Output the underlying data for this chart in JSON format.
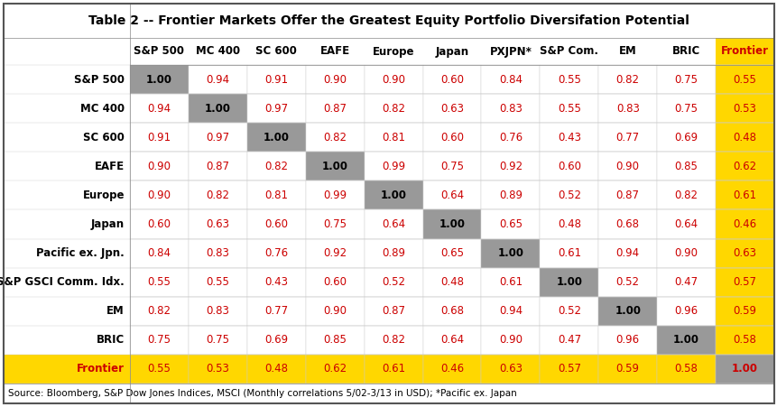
{
  "title": "Table 2 -- Frontier Markets Offer the Greatest Equity Portfolio Diversifation Potential",
  "col_headers": [
    "S&P 500",
    "MC 400",
    "SC 600",
    "EAFE",
    "Europe",
    "Japan",
    "PXJPN*",
    "S&P Com.",
    "EM",
    "BRIC",
    "Frontier"
  ],
  "row_headers": [
    "S&P 500",
    "MC 400",
    "SC 600",
    "EAFE",
    "Europe",
    "Japan",
    "Pacific ex. Jpn.",
    "S&P GSCI Comm. Idx.",
    "EM",
    "BRIC",
    "Frontier"
  ],
  "data": [
    [
      1.0,
      0.94,
      0.91,
      0.9,
      0.9,
      0.6,
      0.84,
      0.55,
      0.82,
      0.75,
      0.55
    ],
    [
      0.94,
      1.0,
      0.97,
      0.87,
      0.82,
      0.63,
      0.83,
      0.55,
      0.83,
      0.75,
      0.53
    ],
    [
      0.91,
      0.97,
      1.0,
      0.82,
      0.81,
      0.6,
      0.76,
      0.43,
      0.77,
      0.69,
      0.48
    ],
    [
      0.9,
      0.87,
      0.82,
      1.0,
      0.99,
      0.75,
      0.92,
      0.6,
      0.9,
      0.85,
      0.62
    ],
    [
      0.9,
      0.82,
      0.81,
      0.99,
      1.0,
      0.64,
      0.89,
      0.52,
      0.87,
      0.82,
      0.61
    ],
    [
      0.6,
      0.63,
      0.6,
      0.75,
      0.64,
      1.0,
      0.65,
      0.48,
      0.68,
      0.64,
      0.46
    ],
    [
      0.84,
      0.83,
      0.76,
      0.92,
      0.89,
      0.65,
      1.0,
      0.61,
      0.94,
      0.9,
      0.63
    ],
    [
      0.55,
      0.55,
      0.43,
      0.6,
      0.52,
      0.48,
      0.61,
      1.0,
      0.52,
      0.47,
      0.57
    ],
    [
      0.82,
      0.83,
      0.77,
      0.9,
      0.87,
      0.68,
      0.94,
      0.52,
      1.0,
      0.96,
      0.59
    ],
    [
      0.75,
      0.75,
      0.69,
      0.85,
      0.82,
      0.64,
      0.9,
      0.47,
      0.96,
      1.0,
      0.58
    ],
    [
      0.55,
      0.53,
      0.48,
      0.62,
      0.61,
      0.46,
      0.63,
      0.57,
      0.59,
      0.58,
      1.0
    ]
  ],
  "diagonal_color": "#999999",
  "frontier_col_color": "#FFD700",
  "frontier_row_color": "#FFD700",
  "text_color_red": "#CC0000",
  "text_color_black": "#000000",
  "bg_color": "#FFFFFF",
  "source_text": "Source: Bloomberg, S&P Dow Jones Indices, MSCI (Monthly correlations 5/02-3/13 in USD); *Pacific ex. Japan",
  "title_fontsize": 10,
  "cell_fontsize": 8.5,
  "header_fontsize": 8.5,
  "row_header_fontsize": 8.5,
  "source_fontsize": 7.5
}
